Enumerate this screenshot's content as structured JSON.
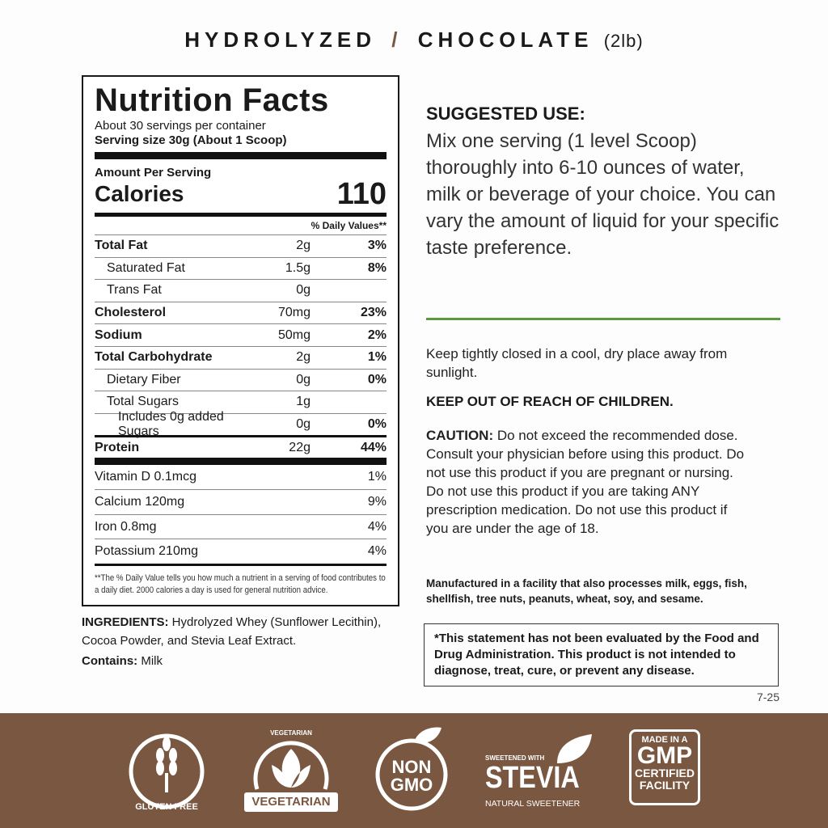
{
  "header": {
    "product": "HYDROLYZED",
    "separator": "/",
    "flavor": "CHOCOLATE",
    "size": "(2lb)"
  },
  "nutrition": {
    "title": "Nutrition Facts",
    "servings": "About 30 servings per container",
    "serving_size": "Serving size 30g (About 1 Scoop)",
    "amount_per_serving": "Amount Per Serving",
    "calories_label": "Calories",
    "calories": "110",
    "dv_header": "% Daily Values**",
    "rows": [
      {
        "name": "Total Fat",
        "amount": "2g",
        "dv": "3%",
        "bold": true,
        "indent": 0
      },
      {
        "name": "Saturated Fat",
        "amount": "1.5g",
        "dv": "8%",
        "bold": false,
        "indent": 1
      },
      {
        "name": "Trans Fat",
        "amount": "0g",
        "dv": "",
        "bold": false,
        "indent": 1
      },
      {
        "name": "Cholesterol",
        "amount": "70mg",
        "dv": "23%",
        "bold": true,
        "indent": 0
      },
      {
        "name": "Sodium",
        "amount": "50mg",
        "dv": "2%",
        "bold": true,
        "indent": 0
      },
      {
        "name": "Total Carbohydrate",
        "amount": "2g",
        "dv": "1%",
        "bold": true,
        "indent": 0
      },
      {
        "name": "Dietary Fiber",
        "amount": "0g",
        "dv": "0%",
        "bold": false,
        "indent": 1
      },
      {
        "name": "Total Sugars",
        "amount": "1g",
        "dv": "",
        "bold": false,
        "indent": 1
      },
      {
        "name": "Includes 0g added Sugars",
        "amount": "0g",
        "dv": "0%",
        "bold": false,
        "indent": 2
      },
      {
        "name": "Protein",
        "amount": "22g",
        "dv": "44%",
        "bold": true,
        "indent": 0
      }
    ],
    "vitamins": [
      {
        "name": "Vitamin D 0.1mcg",
        "dv": "1%"
      },
      {
        "name": "Calcium 120mg",
        "dv": "9%"
      },
      {
        "name": "Iron 0.8mg",
        "dv": "4%"
      },
      {
        "name": "Potassium 210mg",
        "dv": "4%"
      }
    ],
    "footnote": "**The % Daily Value tells you how much a nutrient in a  serving of food contributes to a daily diet. 2000 calories a day is used for general nutrition advice."
  },
  "ingredients": {
    "label": "INGREDIENTS:",
    "text": " Hydrolyzed Whey (Sunflower Lecithin), Cocoa Powder, and Stevia Leaf Extract.",
    "contains_label": "Contains:",
    "contains": " Milk"
  },
  "suggested_use": {
    "title": "SUGGESTED USE:",
    "text": "Mix one serving (1 level Scoop) thoroughly into 6-10 ounces of water, milk or beverage of your choice. You can vary the amount of liquid for your specific taste preference."
  },
  "storage": "Keep tightly closed in a cool, dry place away from sunlight.",
  "keep_out": "KEEP OUT OF REACH OF CHILDREN.",
  "caution": {
    "label": "CAUTION:",
    "text": " Do not exceed the recommended dose. Consult your physician before using this product. Do not use this product if you are pregnant or nursing. Do not use this product if you are taking ANY prescription medication. Do not use this product if you are under the age of 18."
  },
  "allergen": "Manufactured in a facility that also processes milk, eggs, fish, shellfish, tree nuts, peanuts, wheat, soy, and sesame.",
  "disclaimer": "*This statement has not been evaluated by the Food and Drug Administration. This product is not intended to diagnose, treat, cure, or prevent any disease.",
  "version": "7-25",
  "badges": {
    "gluten_free": "GLUTEN FREE",
    "vegetarian_top": "VEGETARIAN",
    "vegetarian": "VEGETARIAN",
    "non": "NON",
    "gmo": "GMO",
    "stevia_top": "SWEETENED WITH",
    "stevia": "STEVIA",
    "stevia_bottom": "NATURAL SWEETENER",
    "gmp_top": "MADE IN A",
    "gmp": "GMP",
    "gmp_bottom1": "CERTIFIED",
    "gmp_bottom2": "FACILITY"
  },
  "colors": {
    "band": "#7a5740",
    "accent_line": "#5a9a3a"
  }
}
